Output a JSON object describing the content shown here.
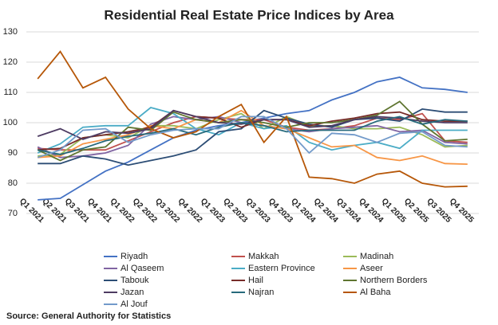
{
  "chart_data": {
    "type": "line",
    "title": "Residential Real Estate Price Indices by Area",
    "source": "Source: General Authority for Statistics",
    "categories": [
      "Q1 2021",
      "Q2 2021",
      "Q3 2021",
      "Q4 2021",
      "Q1 2022",
      "Q2 2022",
      "Q3 2022",
      "Q4 2022",
      "Q1 2023",
      "Q2 2023",
      "Q3 2023",
      "Q4 2023",
      "Q1 2024",
      "Q2 2024",
      "Q3 2024",
      "Q4 2024",
      "Q1 2025",
      "Q2 2025",
      "Q3 2025",
      "Q4 2025"
    ],
    "ylim": [
      70,
      130
    ],
    "yticks": [
      70,
      80,
      90,
      100,
      110,
      120,
      130
    ],
    "grid": true,
    "series": [
      {
        "name": "Riyadh",
        "color": "#4472c4",
        "values": [
          74.5,
          75,
          79.5,
          84,
          87,
          91,
          95,
          97.5,
          99,
          100,
          101.5,
          103,
          104,
          107.5,
          110,
          113.5,
          115,
          111.5,
          111,
          110
        ]
      },
      {
        "name": "Makkah",
        "color": "#c0504d",
        "values": [
          91.5,
          91,
          91,
          91,
          94,
          97,
          100,
          102,
          101.5,
          101,
          101,
          98.5,
          97.5,
          98,
          99,
          101.5,
          101,
          103,
          94,
          93.5
        ]
      },
      {
        "name": "Madinah",
        "color": "#9bbb59",
        "values": [
          89,
          89.5,
          95,
          96,
          95,
          99,
          99,
          98,
          101,
          103,
          98,
          102,
          99,
          99,
          98,
          98,
          98.5,
          96,
          92,
          92.5
        ]
      },
      {
        "name": "Al Qaseem",
        "color": "#8064a2",
        "values": [
          92,
          88.5,
          89,
          90,
          92.5,
          99.5,
          102,
          101,
          102,
          100,
          99,
          98,
          97,
          98,
          98.5,
          99,
          97,
          97.5,
          93.5,
          93
        ]
      },
      {
        "name": "Eastern Province",
        "color": "#4bacc6",
        "values": [
          90,
          93,
          98.5,
          99,
          99,
          105,
          103,
          98,
          96,
          100,
          98,
          99,
          93.5,
          91,
          92.5,
          93.5,
          91.5,
          97.5,
          97.5,
          97.5
        ]
      },
      {
        "name": "Aseer",
        "color": "#f79646",
        "values": [
          88.5,
          89,
          93,
          94.5,
          96,
          99,
          98,
          101,
          100,
          104,
          99,
          98,
          95,
          92,
          92.5,
          88.5,
          87.5,
          89,
          86.5,
          86.3
        ]
      },
      {
        "name": "Tabouk",
        "color": "#2c4d75",
        "values": [
          86.5,
          86.5,
          89,
          88,
          86,
          87.5,
          89,
          91,
          97,
          98,
          104,
          101.5,
          99.5,
          98.5,
          101,
          101.5,
          100.5,
          104.5,
          103.5,
          103.5
        ]
      },
      {
        "name": "Hail",
        "color": "#772c2a",
        "values": [
          91,
          91.5,
          95,
          96,
          97,
          98.5,
          104,
          102,
          101.5,
          98.5,
          101,
          101,
          99,
          100.5,
          101.5,
          103,
          103.5,
          101,
          100.5,
          100.5
        ]
      },
      {
        "name": "Northern Borders",
        "color": "#5f7530",
        "values": [
          91,
          87.5,
          91,
          92,
          98.5,
          97.5,
          103.5,
          101,
          100,
          101,
          100,
          98.5,
          100,
          100,
          101,
          102.5,
          107,
          99.5,
          94,
          94.5
        ]
      },
      {
        "name": "Jazan",
        "color": "#4d3b62",
        "values": [
          95.5,
          98,
          94.5,
          97,
          96.5,
          98,
          104,
          102,
          100,
          99.5,
          101,
          101,
          98.5,
          99,
          101,
          102,
          101.5,
          100.5,
          100,
          100
        ]
      },
      {
        "name": "Najran",
        "color": "#276a7c",
        "values": [
          91,
          89.5,
          91.5,
          94,
          95.5,
          96.5,
          98,
          96,
          98.5,
          100,
          99,
          97,
          97.5,
          97.5,
          97.5,
          100.5,
          102,
          99.5,
          101,
          100.5
        ]
      },
      {
        "name": "Al Baha",
        "color": "#b65708",
        "values": [
          114.5,
          123.5,
          111.5,
          115,
          104.5,
          98,
          95,
          97,
          102,
          106,
          93.5,
          102,
          82,
          81.5,
          80,
          83,
          84,
          80,
          78.8,
          79
        ]
      },
      {
        "name": "Al Jouf",
        "color": "#729aca",
        "values": [
          88.5,
          91,
          97.5,
          98,
          93.5,
          96,
          97.5,
          98,
          98,
          102,
          102,
          98,
          90,
          96.5,
          96,
          93.5,
          96.5,
          97,
          92.5,
          92
        ]
      }
    ]
  }
}
